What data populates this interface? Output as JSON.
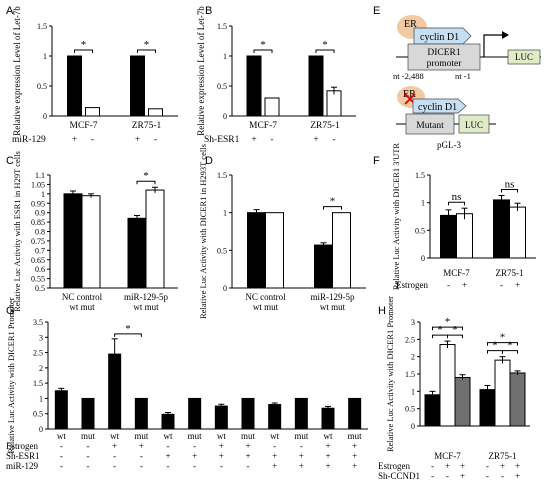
{
  "figure": {
    "panels": [
      {
        "letter": "A"
      },
      {
        "letter": "B"
      },
      {
        "letter": "C"
      },
      {
        "letter": "D"
      },
      {
        "letter": "E"
      },
      {
        "letter": "F"
      },
      {
        "letter": "G"
      },
      {
        "letter": "H"
      }
    ]
  },
  "colors": {
    "black": "#000000",
    "white": "#ffffff",
    "gray": "#707070",
    "diagram_fill": "#d8d8d8",
    "er_fill": "#f1c9a2",
    "cyclin_fill": "#c6dff3",
    "luc_fill": "#e0ecc8",
    "mutation_mark": "#dd0000"
  },
  "chart_data": [
    {
      "panel": "A",
      "type": "bar",
      "ylabel": "Relative expression Level of Let-7b",
      "ylim": [
        0,
        1.5
      ],
      "yticks": [
        "0",
        "0.5",
        "1",
        "1.5"
      ],
      "groups": [
        "MCF-7",
        "ZR75-1"
      ],
      "series": [
        {
          "values": [
            1.0,
            1.0
          ],
          "fill": "black"
        },
        {
          "values": [
            0.14,
            0.12
          ],
          "fill": "white"
        }
      ],
      "errors": [
        [
          0,
          0
        ],
        [
          0,
          0
        ]
      ],
      "significance": [
        {
          "group": 0,
          "label": "*"
        },
        {
          "group": 1,
          "label": "*"
        }
      ],
      "conditions": [
        {
          "label": "miR-129",
          "marks": [
            "+",
            "-",
            "+",
            "-"
          ]
        }
      ]
    },
    {
      "panel": "B",
      "type": "bar",
      "ylabel": "Relative expression Level of Let-7b",
      "ylim": [
        0,
        1.5
      ],
      "yticks": [
        "0",
        "0.5",
        "1",
        "1.5"
      ],
      "groups": [
        "MCF-7",
        "ZR75-1"
      ],
      "series": [
        {
          "values": [
            1.0,
            1.0
          ],
          "fill": "black"
        },
        {
          "values": [
            0.3,
            0.42
          ],
          "fill": "white"
        }
      ],
      "errors": [
        [
          0,
          0
        ],
        [
          0,
          0.06
        ]
      ],
      "significance": [
        {
          "group": 0,
          "label": "*"
        },
        {
          "group": 1,
          "label": "*"
        }
      ],
      "conditions": [
        {
          "label": "Sh-ESR1",
          "marks": [
            "+",
            "-",
            "+",
            "-"
          ]
        }
      ]
    },
    {
      "panel": "C",
      "type": "bar",
      "ylabel": "Relative Luc Activity with ESR1 in H29T cells",
      "ylim": [
        0.5,
        1.1
      ],
      "yticks": [
        "0.5",
        "0.55",
        "0.6",
        "0.65",
        "0.7",
        "0.75",
        "0.8",
        "0.85",
        "0.9",
        "0.95",
        "1",
        "1.05",
        "1.1"
      ],
      "groups": [
        "NC control",
        "miR-129-5p"
      ],
      "subtitle": "wt mut",
      "series": [
        {
          "values": [
            1.0,
            0.87
          ],
          "fill": "black"
        },
        {
          "values": [
            0.99,
            1.02
          ],
          "fill": "white"
        }
      ],
      "errors": [
        [
          0.015,
          0.015
        ],
        [
          0.01,
          0.015
        ]
      ],
      "significance": [
        {
          "group": 1,
          "label": "*"
        }
      ],
      "conditions": []
    },
    {
      "panel": "D",
      "type": "bar",
      "ylabel": "Relative Luc Activity with DICER1 in H293T cells",
      "ylim": [
        0,
        1.5
      ],
      "yticks": [
        "0",
        "0.5",
        "1",
        "1.5"
      ],
      "groups": [
        "NC control",
        "miR-129-5p"
      ],
      "subtitle": "wt mut",
      "series": [
        {
          "values": [
            1.0,
            0.57
          ],
          "fill": "black"
        },
        {
          "values": [
            1.0,
            1.0
          ],
          "fill": "white"
        }
      ],
      "errors": [
        [
          0.04,
          0.03
        ],
        [
          0,
          0
        ]
      ],
      "significance": [
        {
          "group": 1,
          "label": "*"
        }
      ],
      "conditions": []
    },
    {
      "panel": "F",
      "type": "bar",
      "ylabel": "Relative Luc Activity with DICER1 3'UTR",
      "ylim": [
        0,
        1.5
      ],
      "yticks": [
        "0",
        "0.5",
        "1",
        "1.5"
      ],
      "groups": [
        "MCF-7",
        "ZR75-1"
      ],
      "series": [
        {
          "values": [
            0.77,
            1.05
          ],
          "fill": "black"
        },
        {
          "values": [
            0.8,
            0.92
          ],
          "fill": "white"
        }
      ],
      "errors": [
        [
          0.1,
          0.08
        ],
        [
          0.1,
          0.07
        ]
      ],
      "significance": [
        {
          "group": 0,
          "label": "ns"
        },
        {
          "group": 1,
          "label": "ns"
        }
      ],
      "conditions": [
        {
          "label": "Estrogen",
          "marks": [
            "-",
            "+",
            "-",
            "+"
          ]
        }
      ]
    },
    {
      "panel": "G",
      "type": "bar",
      "ylabel": "Relative Luc Activity with DICER1 Promoter",
      "ylim": [
        0,
        3.5
      ],
      "yticks": [
        "0",
        "0.5",
        "1",
        "1.5",
        "2",
        "2.5",
        "3",
        "3.5"
      ],
      "categories": [
        "wt",
        "mut",
        "wt",
        "mut",
        "wt",
        "mut",
        "wt",
        "mut",
        "wt",
        "mut",
        "wt",
        "mut"
      ],
      "values": [
        1.25,
        1.0,
        2.45,
        1.0,
        0.48,
        1.0,
        0.75,
        1.0,
        0.8,
        1.0,
        0.68,
        1.0
      ],
      "errors": [
        0.08,
        0,
        0.5,
        0,
        0.06,
        0,
        0.06,
        0,
        0.05,
        0,
        0.06,
        0
      ],
      "significance": [
        {
          "from": 2,
          "to": 3,
          "label": "*"
        }
      ],
      "conditions": [
        {
          "label": "Estrogen",
          "marks": [
            "-",
            "-",
            "+",
            "+",
            "-",
            "-",
            "+",
            "+",
            "-",
            "-",
            "+",
            "+"
          ]
        },
        {
          "label": "Sh-ESR1",
          "marks": [
            "-",
            "-",
            "-",
            "-",
            "+",
            "+",
            "+",
            "+",
            "+",
            "+",
            "+",
            "+"
          ]
        },
        {
          "label": "miR-129",
          "marks": [
            "-",
            "-",
            "-",
            "-",
            "-",
            "-",
            "-",
            "-",
            "+",
            "+",
            "+",
            "+"
          ]
        }
      ]
    },
    {
      "panel": "H",
      "type": "bar",
      "ylabel": "Relative Luc Activity with DICER1 Promoter",
      "ylim": [
        0,
        3
      ],
      "yticks": [
        "0",
        "0.5",
        "1",
        "1.5",
        "2",
        "2.5",
        "3"
      ],
      "groups": [
        "MCF-7",
        "ZR75-1"
      ],
      "series": [
        {
          "values": [
            0.9,
            1.05
          ],
          "fill": "black"
        },
        {
          "values": [
            2.35,
            1.9
          ],
          "fill": "white"
        },
        {
          "values": [
            1.4,
            1.53
          ],
          "fill": "gray"
        }
      ],
      "errors": [
        [
          0.1,
          0.12
        ],
        [
          0.1,
          0.1
        ],
        [
          0.08,
          0.06
        ]
      ],
      "significance": [
        {
          "group": 0,
          "from": 0,
          "to": 1,
          "label": "*"
        },
        {
          "group": 0,
          "from": 1,
          "to": 2,
          "label": "*"
        },
        {
          "group": 0,
          "from": 0,
          "to": 2,
          "label": "*"
        },
        {
          "group": 1,
          "from": 0,
          "to": 1,
          "label": "*"
        },
        {
          "group": 1,
          "from": 1,
          "to": 2,
          "label": "*"
        },
        {
          "group": 1,
          "from": 0,
          "to": 2,
          "label": "*"
        }
      ],
      "conditions": [
        {
          "label": "Estrogen",
          "marks": [
            "-",
            "+",
            "+",
            "-",
            "+",
            "+"
          ]
        },
        {
          "label": "Sh-CCND1",
          "marks": [
            "-",
            "-",
            "+",
            "-",
            "-",
            "+"
          ]
        }
      ]
    }
  ],
  "diagram": {
    "top": {
      "er": "ER",
      "cyclin": "cyclin D1",
      "promoter_line1": "DICER1",
      "promoter_line2": "promoter",
      "luc": "LUC",
      "nt_left": "nt -2,488",
      "nt_right": "nt -1"
    },
    "bottom": {
      "er": "ER",
      "cyclin": "cyclin D1",
      "promoter": "Mutant",
      "luc": "LUC",
      "vector": "pGL-3"
    }
  }
}
